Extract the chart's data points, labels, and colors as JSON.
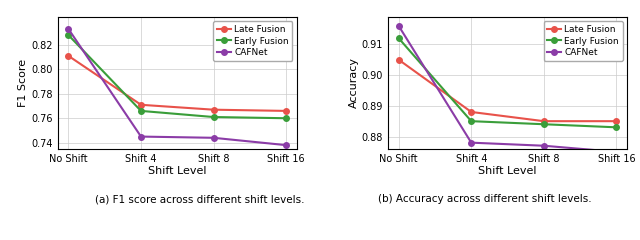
{
  "x_labels": [
    "No Shift",
    "Shift 4",
    "Shift 8",
    "Shift 16"
  ],
  "x_positions": [
    0,
    1,
    2,
    3
  ],
  "f1_late_fusion": [
    0.811,
    0.771,
    0.767,
    0.766
  ],
  "f1_early_fusion": [
    0.828,
    0.766,
    0.761,
    0.76
  ],
  "f1_cafnet": [
    0.833,
    0.745,
    0.744,
    0.738
  ],
  "acc_late_fusion": [
    0.905,
    0.888,
    0.885,
    0.885
  ],
  "acc_early_fusion": [
    0.912,
    0.885,
    0.884,
    0.883
  ],
  "acc_cafnet": [
    0.916,
    0.878,
    0.877,
    0.875
  ],
  "f1_ylim": [
    0.735,
    0.843
  ],
  "acc_ylim": [
    0.876,
    0.919
  ],
  "f1_yticks": [
    0.74,
    0.76,
    0.78,
    0.8,
    0.82
  ],
  "acc_yticks": [
    0.88,
    0.89,
    0.9,
    0.91
  ],
  "color_late": "#e8524a",
  "color_early": "#3a9e3a",
  "color_cafnet": "#8b3ca7",
  "caption_left": "(a) F1 score across different shift levels.",
  "caption_right": "(b) Accuracy across different shift levels.",
  "xlabel": "Shift Level",
  "ylabel_left": "F1 Score",
  "ylabel_right": "Accuracy",
  "legend_entries": [
    "Late Fusion",
    "Early Fusion",
    "CAFNet"
  ],
  "linewidth": 1.5,
  "markersize": 4
}
